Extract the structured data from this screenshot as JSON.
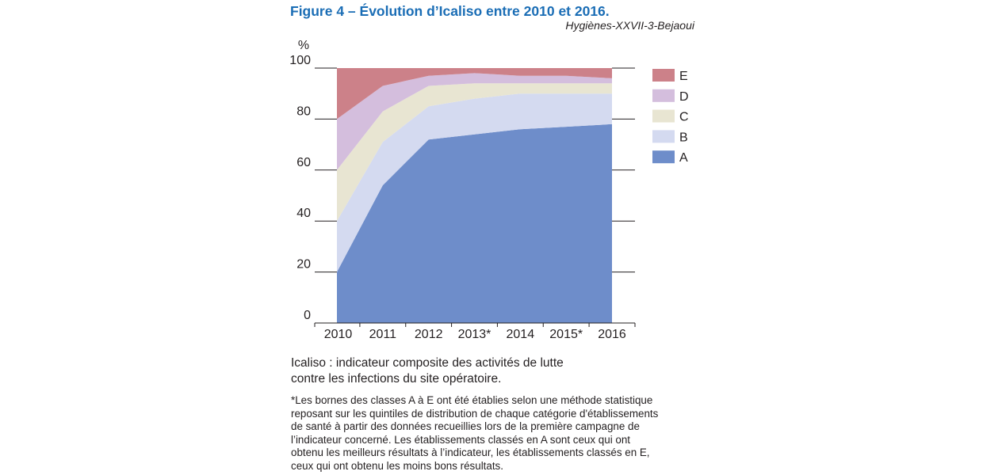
{
  "figure": {
    "title": "Figure 4 – Évolution d’Icaliso entre 2010 et 2016.",
    "source": "Hygiènes-XXVII-3-Bejaoui"
  },
  "caption": {
    "line1": "Icaliso : indicateur composite des activités de lutte",
    "line2": "contre les infections du site opératoire."
  },
  "footnote": {
    "lines": [
      "*Les bornes des classes A à E ont été établies selon une méthode statistique",
      "reposant sur les quintiles de distribution de chaque catégorie d'établissements",
      "de santé à partir des données recueillies lors de la première campagne de",
      "l’indicateur concerné. Les établissements classés en A sont ceux qui ont",
      "obtenu les meilleurs résultats à l’indicateur, les établissements classés en E,",
      "ceux qui ont obtenu les moins bons résultats."
    ]
  },
  "colors": {
    "A": "#6e8dca",
    "B": "#d4daf0",
    "C": "#e8e5d2",
    "D": "#d4bedd",
    "E": "#cc8189"
  },
  "chart_data": {
    "type": "area",
    "stacked": true,
    "ylabel": "%",
    "ylim": [
      0,
      100
    ],
    "yticks": [
      0,
      20,
      40,
      60,
      80,
      100
    ],
    "categories": [
      "2010",
      "2011",
      "2012",
      "2013*",
      "2014",
      "2015*",
      "2016"
    ],
    "series": [
      {
        "name": "A",
        "values": [
          20,
          54,
          72,
          74,
          76,
          77,
          78
        ]
      },
      {
        "name": "B",
        "values": [
          20,
          17,
          13,
          14,
          14,
          13,
          12
        ]
      },
      {
        "name": "C",
        "values": [
          20,
          12,
          8,
          6,
          4,
          4,
          4
        ]
      },
      {
        "name": "D",
        "values": [
          20,
          10,
          4,
          4,
          3,
          3,
          2
        ]
      },
      {
        "name": "E",
        "values": [
          20,
          7,
          3,
          2,
          3,
          3,
          4
        ]
      }
    ],
    "legend": {
      "position": "right",
      "order": [
        "E",
        "D",
        "C",
        "B",
        "A"
      ]
    },
    "grid": false
  }
}
